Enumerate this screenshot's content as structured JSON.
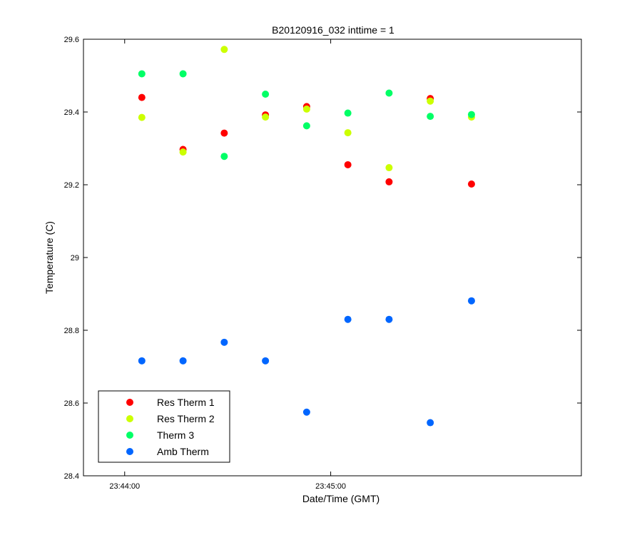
{
  "chart_data": {
    "type": "scatter",
    "title": "B20120916_032 inttime = 1",
    "xlabel": "Date/Time (GMT)",
    "ylabel": "Temperature (C)",
    "x_unit": "seconds",
    "xlim": [
      -12,
      133
    ],
    "ylim": [
      28.4,
      29.6
    ],
    "x_ticks": [
      {
        "value": 0,
        "label": "23:44:00"
      },
      {
        "value": 60,
        "label": "23:45:00"
      }
    ],
    "y_ticks": [
      {
        "value": 28.4,
        "label": "28.4"
      },
      {
        "value": 28.6,
        "label": "28.6"
      },
      {
        "value": 28.8,
        "label": "28.8"
      },
      {
        "value": 29.0,
        "label": "29"
      },
      {
        "value": 29.2,
        "label": "29.2"
      },
      {
        "value": 29.4,
        "label": "29.4"
      },
      {
        "value": 29.6,
        "label": "29.6"
      }
    ],
    "grid": false,
    "legend_position": "bottom-left",
    "x": [
      5,
      17,
      29,
      41,
      53,
      65,
      77,
      89,
      101
    ],
    "series": [
      {
        "name": "Res Therm 1",
        "color": "#ff0000",
        "values": [
          29.44,
          29.297,
          29.342,
          29.392,
          29.415,
          29.255,
          29.208,
          29.437,
          29.202
        ]
      },
      {
        "name": "Res Therm 2",
        "color": "#ccff00",
        "values": [
          29.385,
          29.29,
          29.572,
          29.386,
          29.408,
          29.343,
          29.247,
          29.43,
          29.386
        ]
      },
      {
        "name": "Therm 3",
        "color": "#00ff66",
        "values": [
          29.505,
          29.505,
          29.278,
          29.449,
          29.362,
          29.397,
          29.452,
          29.388,
          29.393
        ]
      },
      {
        "name": "Amb Therm",
        "color": "#0066ff",
        "values": [
          28.716,
          28.716,
          28.767,
          28.716,
          28.575,
          28.83,
          28.83,
          28.546,
          28.881
        ]
      }
    ]
  }
}
